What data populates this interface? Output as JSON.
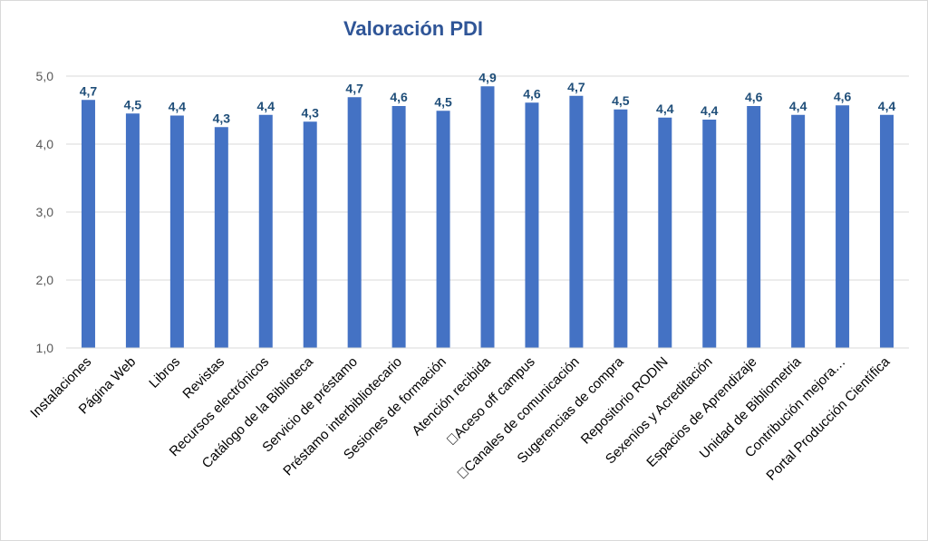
{
  "chart_data": {
    "type": "bar",
    "title": "Valoración PDI",
    "xlabel": "",
    "ylabel": "",
    "ylim": [
      1.0,
      5.0
    ],
    "yticks": [
      "1,0",
      "2,0",
      "3,0",
      "4,0",
      "5,0"
    ],
    "grid": true,
    "legend": "none",
    "bar_color": "#4472c4",
    "categories": [
      "Instalaciones",
      "Página Web",
      "Libros",
      "Revistas",
      "Recursos electrónicos",
      "Catálogo de la Biblioteca",
      "Servicio de préstamo",
      "Préstamo interbibliotecario",
      "Sesiones de formación",
      "Atención recibida",
      "\u0000Aceso off campus",
      "\u0000Canales de comunicación",
      "Sugerencias de compra",
      "Repositorio RODIN",
      "Sexenios y Acreditación",
      "Espacios de Aprendizaje",
      "Unidad de Bibliometria",
      "Contribución mejora…",
      "Portal Producción Científica"
    ],
    "values": [
      4.65,
      4.45,
      4.42,
      4.25,
      4.43,
      4.33,
      4.69,
      4.56,
      4.49,
      4.85,
      4.61,
      4.71,
      4.51,
      4.39,
      4.36,
      4.56,
      4.43,
      4.57,
      4.43
    ],
    "data_labels": [
      "4,7",
      "4,5",
      "4,4",
      "4,3",
      "4,4",
      "4,3",
      "4,7",
      "4,6",
      "4,5",
      "4,9",
      "4,6",
      "4,7",
      "4,5",
      "4,4",
      "4,4",
      "4,6",
      "4,4",
      "4,6",
      "4,4"
    ]
  }
}
